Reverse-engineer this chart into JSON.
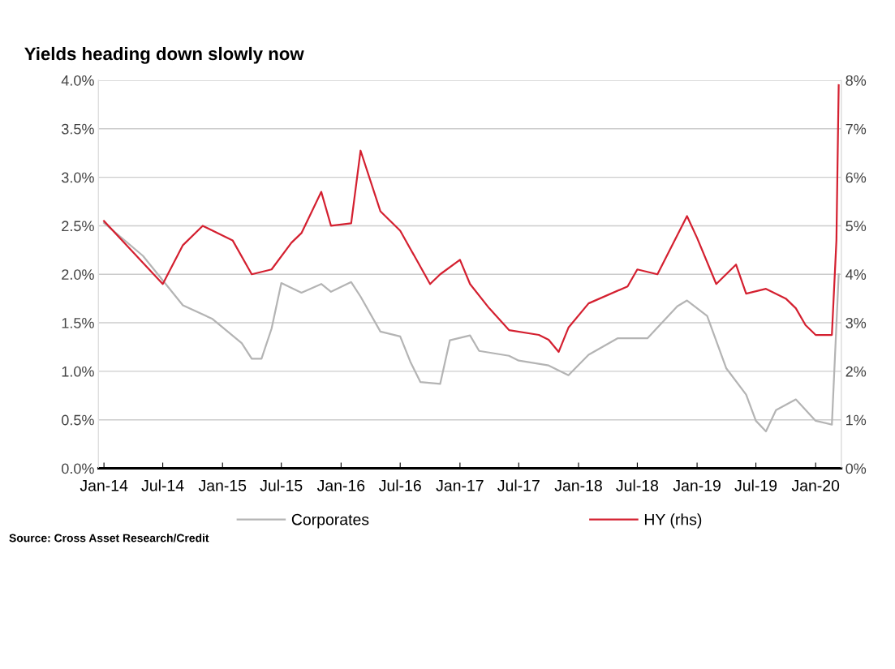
{
  "chart_data": {
    "type": "line",
    "title": "Yields heading down slowly now",
    "x": [
      "2014-01",
      "2014-05",
      "2014-09",
      "2014-12",
      "2015-03",
      "2015-04",
      "2015-05",
      "2015-06",
      "2015-07",
      "2015-09",
      "2015-11",
      "2015-12",
      "2016-02",
      "2016-03",
      "2016-05",
      "2016-07",
      "2016-08",
      "2016-09",
      "2016-11",
      "2016-12",
      "2017-02",
      "2017-03",
      "2017-06",
      "2017-07",
      "2017-10",
      "2017-12",
      "2018-02",
      "2018-05",
      "2018-08",
      "2018-11",
      "2018-12",
      "2019-02",
      "2019-04",
      "2019-06",
      "2019-07",
      "2019-08",
      "2019-09",
      "2019-11",
      "2020-01",
      "2020-02-20",
      "2020-03-12"
    ],
    "series": [
      {
        "name": "Corporates",
        "color": "#b4b4b4",
        "values": [
          2.53,
          2.19,
          1.68,
          1.54,
          1.29,
          1.13,
          1.13,
          1.44,
          1.91,
          1.81,
          1.9,
          1.82,
          1.92,
          1.77,
          1.41,
          1.36,
          1.1,
          0.89,
          0.87,
          1.32,
          1.37,
          1.21,
          1.16,
          1.11,
          1.06,
          0.96,
          1.17,
          1.34,
          1.34,
          1.67,
          1.73,
          1.57,
          1.03,
          0.76,
          0.49,
          0.38,
          0.6,
          0.71,
          0.49,
          0.45,
          2.0
        ]
      },
      {
        "name": "HY (rhs)",
        "color": "#d42030",
        "axis": "y2",
        "x": [
          "2014-01",
          "2014-07",
          "2014-09",
          "2014-11",
          "2015-02",
          "2015-04",
          "2015-06",
          "2015-08",
          "2015-09",
          "2015-11",
          "2015-12",
          "2016-02",
          "2016-03",
          "2016-05",
          "2016-07",
          "2016-10",
          "2016-11",
          "2017-01",
          "2017-02",
          "2017-04",
          "2017-06",
          "2017-09",
          "2017-10",
          "2017-11",
          "2017-12",
          "2018-02",
          "2018-06",
          "2018-07",
          "2018-09",
          "2018-12",
          "2019-01",
          "2019-03",
          "2019-05",
          "2019-06",
          "2019-08",
          "2019-10",
          "2019-11",
          "2019-12",
          "2020-01",
          "2020-02-20",
          "2020-03-05",
          "2020-03-12"
        ],
        "values": [
          5.1,
          3.8,
          4.6,
          5.0,
          4.7,
          4.0,
          4.1,
          4.65,
          4.85,
          5.7,
          5.0,
          5.05,
          6.55,
          5.3,
          4.9,
          3.8,
          4.0,
          4.3,
          3.8,
          3.3,
          2.85,
          2.75,
          2.65,
          2.4,
          2.9,
          3.4,
          3.75,
          4.1,
          4.0,
          5.2,
          4.75,
          3.8,
          4.2,
          3.6,
          3.7,
          3.5,
          3.3,
          2.95,
          2.75,
          2.75,
          4.7,
          7.9
        ]
      }
    ],
    "xlim": [
      "2013-12-15",
      "2020-03-20"
    ],
    "xticks": [
      {
        "value": "2014-01-01",
        "label": "Jan-14"
      },
      {
        "value": "2014-07-01",
        "label": "Jul-14"
      },
      {
        "value": "2015-01-01",
        "label": "Jan-15"
      },
      {
        "value": "2015-07-01",
        "label": "Jul-15"
      },
      {
        "value": "2016-01-01",
        "label": "Jan-16"
      },
      {
        "value": "2016-07-01",
        "label": "Jul-16"
      },
      {
        "value": "2017-01-01",
        "label": "Jan-17"
      },
      {
        "value": "2017-07-01",
        "label": "Jul-17"
      },
      {
        "value": "2018-01-01",
        "label": "Jan-18"
      },
      {
        "value": "2018-07-01",
        "label": "Jul-18"
      },
      {
        "value": "2019-01-01",
        "label": "Jan-19"
      },
      {
        "value": "2019-07-01",
        "label": "Jul-19"
      },
      {
        "value": "2020-01-01",
        "label": "Jan-20"
      }
    ],
    "ylim": [
      0,
      4
    ],
    "yticks": [
      {
        "value": 0,
        "label": "0.0%"
      },
      {
        "value": 0.5,
        "label": "0.5%"
      },
      {
        "value": 1,
        "label": "1.0%"
      },
      {
        "value": 1.5,
        "label": "1.5%"
      },
      {
        "value": 2,
        "label": "2.0%"
      },
      {
        "value": 2.5,
        "label": "2.5%"
      },
      {
        "value": 3,
        "label": "3.0%"
      },
      {
        "value": 3.5,
        "label": "3.5%"
      },
      {
        "value": 4,
        "label": "4.0%"
      }
    ],
    "y2lim": [
      0,
      8
    ],
    "y2ticks": [
      {
        "value": 0,
        "label": "0%"
      },
      {
        "value": 1,
        "label": "1%"
      },
      {
        "value": 2,
        "label": "2%"
      },
      {
        "value": 3,
        "label": "3%"
      },
      {
        "value": 4,
        "label": "4%"
      },
      {
        "value": 5,
        "label": "5%"
      },
      {
        "value": 6,
        "label": "6%"
      },
      {
        "value": 7,
        "label": "7%"
      },
      {
        "value": 8,
        "label": "8%"
      }
    ],
    "grid": "y",
    "legend": "bottom",
    "annotations": [
      "Source: Cross Asset Research/Credit"
    ]
  }
}
